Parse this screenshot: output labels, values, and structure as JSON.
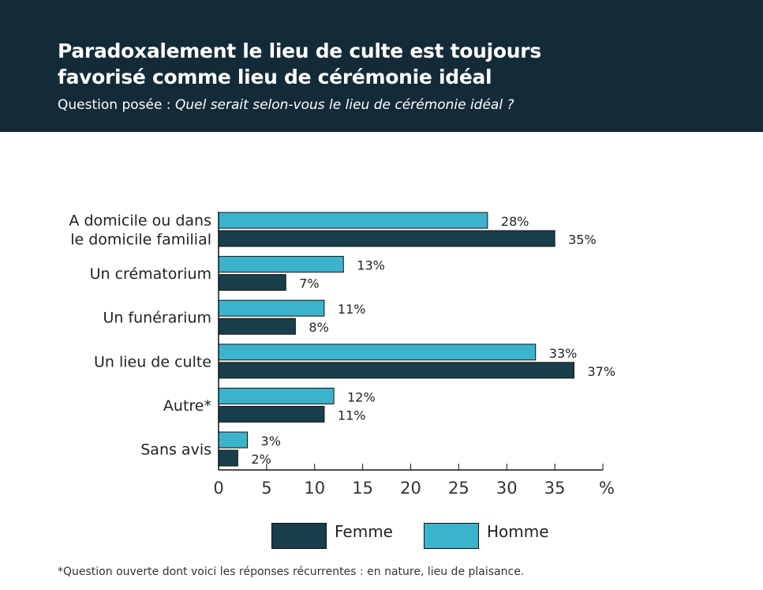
{
  "header": {
    "title_line1": "Paradoxalement le lieu de culte est toujours",
    "title_line2": "favorisé comme lieu de cérémonie idéal",
    "question_prefix": "Question posée : ",
    "question": "Quel serait selon-vous le lieu de cérémonie idéal ?"
  },
  "chart_data": {
    "type": "bar",
    "orientation": "horizontal",
    "categories": [
      [
        "A domicile ou dans",
        "le domicile familial"
      ],
      [
        "Un crématorium"
      ],
      [
        "Un funérarium"
      ],
      [
        "Un lieu de culte"
      ],
      [
        "Autre*"
      ],
      [
        "Sans avis"
      ]
    ],
    "series": [
      {
        "name": "Homme",
        "color": "#3bb3cc",
        "values": [
          28,
          13,
          11,
          33,
          12,
          3
        ],
        "labels": [
          "28%",
          "13%",
          "11%",
          "33%",
          "12%",
          "3%"
        ]
      },
      {
        "name": "Femme",
        "color": "#183f4b",
        "values": [
          35,
          7,
          8,
          37,
          11,
          2
        ],
        "labels": [
          "35%",
          "7%",
          "8%",
          "37%",
          "11%",
          "2%"
        ]
      }
    ],
    "xlim": [
      0,
      40
    ],
    "xticks": [
      "0",
      "5",
      "10",
      "15",
      "20",
      "25",
      "30",
      "35"
    ],
    "xunit": "%",
    "grid": false,
    "legend_placement": "bottom"
  },
  "legend": {
    "femme": "Femme",
    "homme": "Homme"
  },
  "footnote": "*Question ouverte dont voici les réponses récurrentes : en nature, lieu de plaisance."
}
